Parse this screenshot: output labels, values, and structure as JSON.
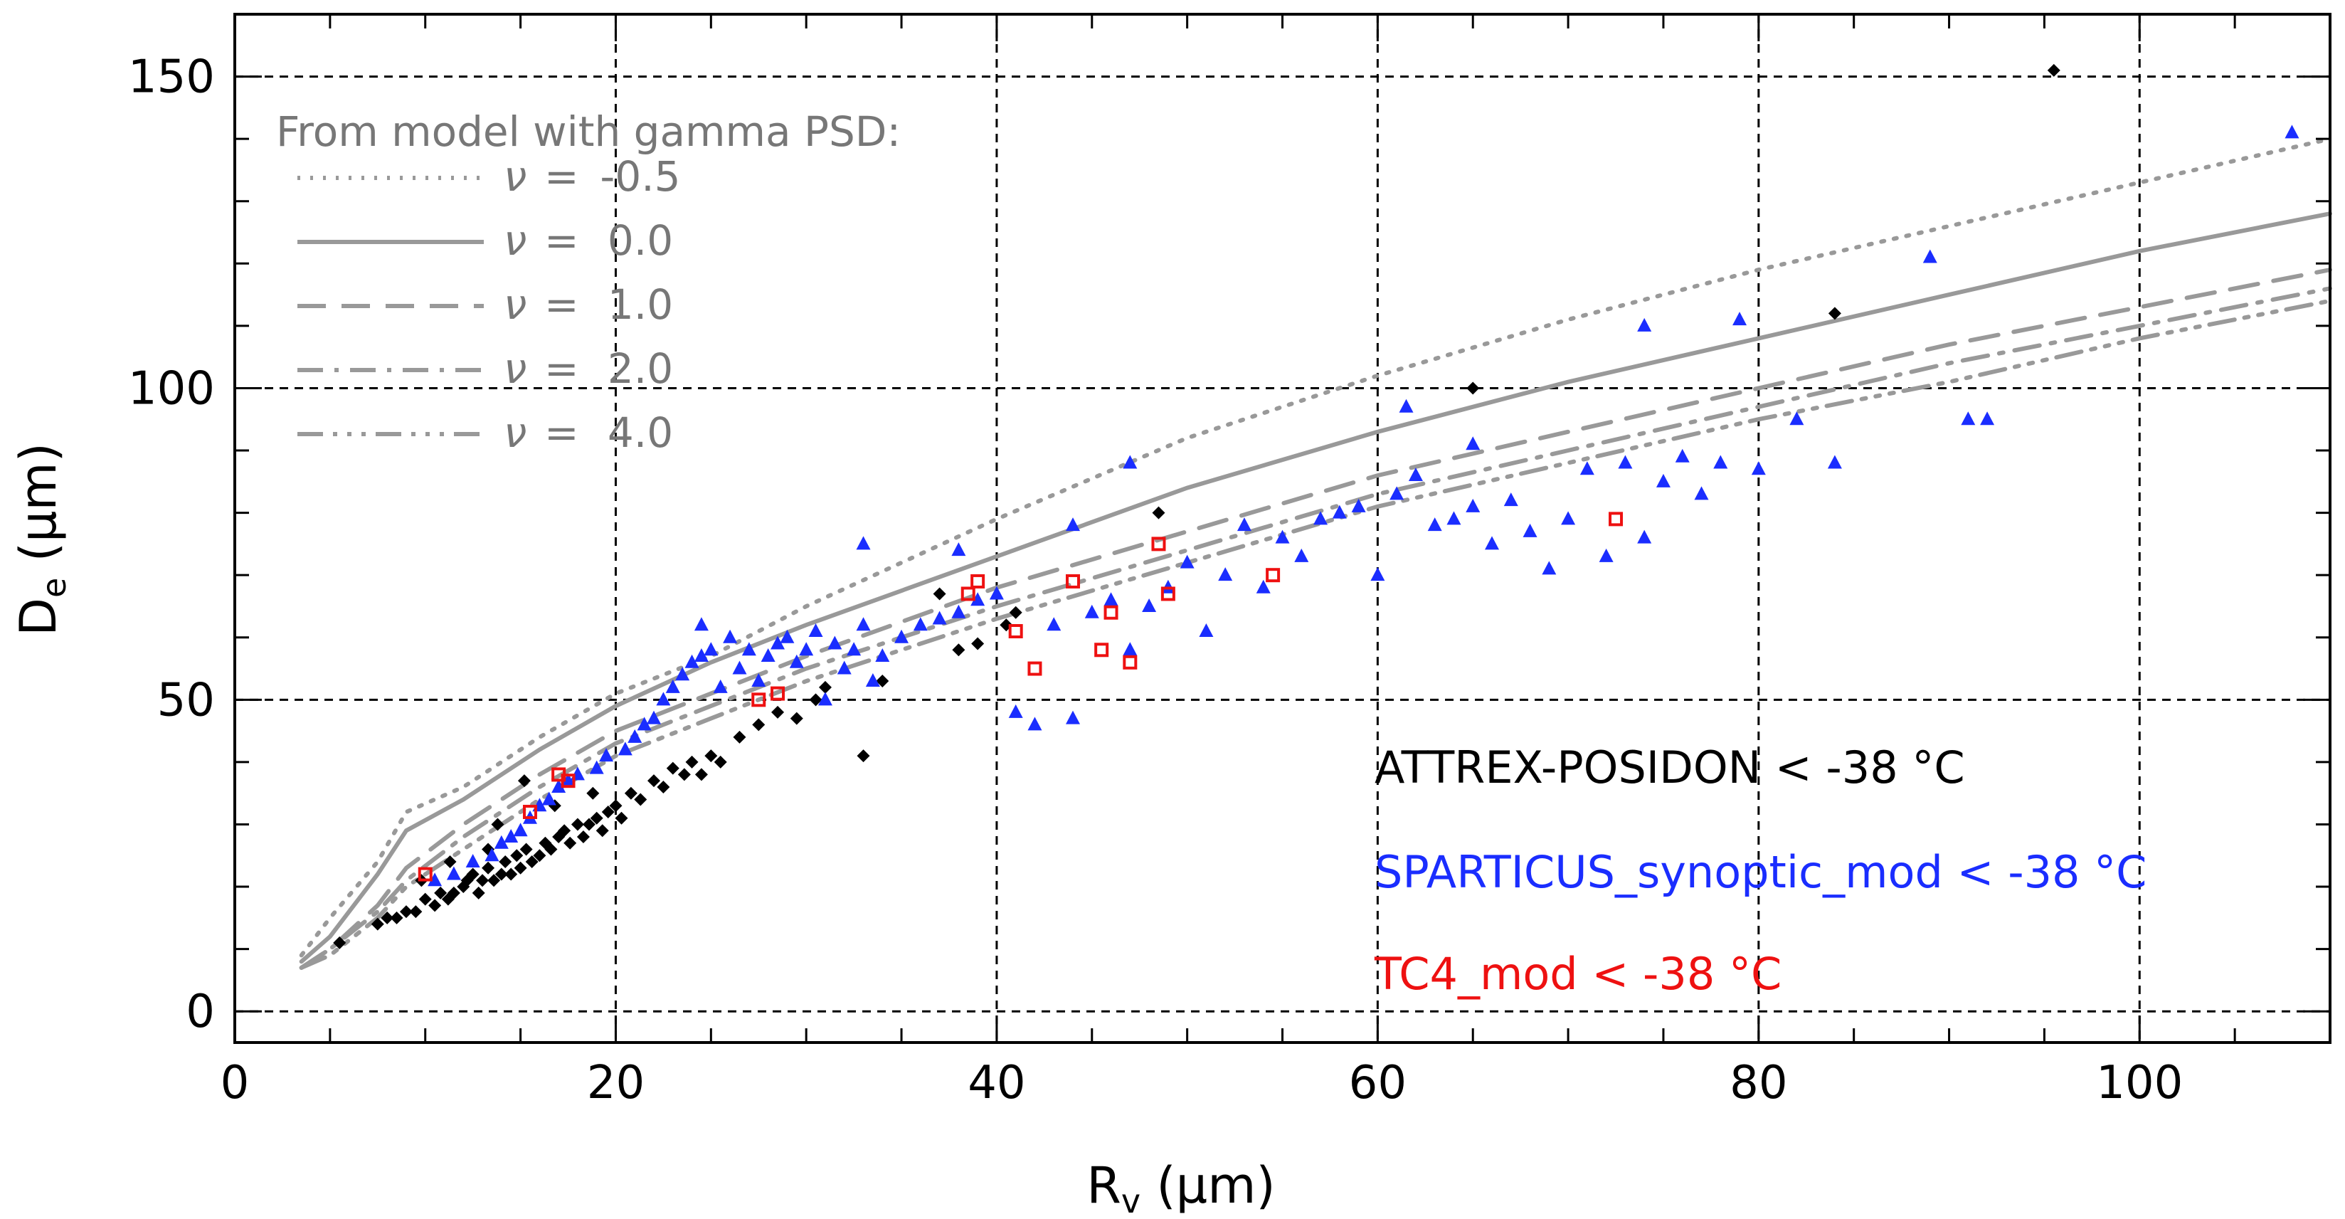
{
  "chart_data": {
    "type": "scatter",
    "xlabel": "R",
    "xlabel_sub": "v",
    "xlabel_unit": " (μm)",
    "ylabel": "D",
    "ylabel_sub": "e",
    "ylabel_unit": " (μm)",
    "xlim": [
      0,
      110
    ],
    "ylim": [
      -5,
      160
    ],
    "x_ticks": [
      0,
      20,
      40,
      60,
      80,
      100
    ],
    "y_ticks": [
      0,
      50,
      100,
      150
    ],
    "x_minor_step": 5,
    "y_minor_step": 10,
    "grid": "dashed at major ticks",
    "legend": {
      "title": "From model with gamma PSD:",
      "position": "top-left",
      "entries": [
        {
          "symbol": "ν",
          "eq": "=",
          "value": "-0.5",
          "dash": "dotted"
        },
        {
          "symbol": "ν",
          "eq": "=",
          "value": "0.0",
          "dash": "solid"
        },
        {
          "symbol": "ν",
          "eq": "=",
          "value": "1.0",
          "dash": "dashed"
        },
        {
          "symbol": "ν",
          "eq": "=",
          "value": "2.0",
          "dash": "dash-dot"
        },
        {
          "symbol": "ν",
          "eq": "=",
          "value": "4.0",
          "dash": "dash-dot-dot-dot"
        }
      ]
    },
    "model_color": "#999999",
    "model_curves": [
      {
        "nu": "-0.5",
        "x": [
          3.5,
          5,
          7.5,
          9,
          12,
          16,
          20,
          25,
          30,
          40,
          50,
          60,
          70,
          80,
          90,
          100,
          110
        ],
        "y": [
          9,
          15,
          24,
          32,
          36,
          44,
          51,
          57,
          65,
          79,
          92,
          102,
          111,
          119,
          126,
          133,
          140
        ]
      },
      {
        "nu": "0.0",
        "x": [
          3.5,
          5,
          7.5,
          9,
          12,
          16,
          20,
          25,
          30,
          40,
          50,
          60,
          70,
          80,
          90,
          100,
          110
        ],
        "y": [
          8,
          12,
          22,
          29,
          34,
          42,
          49,
          56,
          62,
          73,
          84,
          93,
          101,
          108,
          115,
          122,
          128
        ]
      },
      {
        "nu": "1.0",
        "x": [
          3.5,
          5,
          7.5,
          9,
          12,
          16,
          20,
          25,
          30,
          40,
          50,
          60,
          70,
          80,
          90,
          100,
          110
        ],
        "y": [
          7,
          10,
          17,
          23,
          30,
          38,
          45,
          51,
          57,
          68,
          77,
          86,
          93,
          100,
          107,
          113,
          119
        ]
      },
      {
        "nu": "2.0",
        "x": [
          3.5,
          5,
          7.5,
          9,
          12,
          16,
          20,
          25,
          30,
          40,
          50,
          60,
          70,
          80,
          90,
          100,
          110
        ],
        "y": [
          7,
          10,
          16,
          21,
          28,
          36,
          43,
          49,
          55,
          65,
          74,
          83,
          90,
          97,
          104,
          110,
          116
        ]
      },
      {
        "nu": "4.0",
        "x": [
          3.5,
          5,
          7.5,
          9,
          12,
          16,
          20,
          25,
          30,
          40,
          50,
          60,
          70,
          80,
          90,
          100,
          110
        ],
        "y": [
          7,
          9,
          15,
          20,
          26,
          34,
          41,
          47,
          53,
          63,
          72,
          81,
          88,
          95,
          101,
          108,
          114
        ]
      }
    ],
    "series": [
      {
        "name": "ATTREX-POSIDON < -38 °C",
        "color": "#000000",
        "marker": "diamond",
        "x": [
          5.5,
          7.5,
          8,
          8.5,
          9,
          9.5,
          10,
          10.5,
          10.8,
          11.2,
          11.5,
          12,
          12.2,
          12.5,
          12.8,
          13,
          13.3,
          13.6,
          14,
          14.2,
          14.5,
          14.8,
          15,
          15.3,
          15.6,
          16,
          16.3,
          16.6,
          17,
          17.3,
          17.6,
          18,
          18.3,
          18.6,
          19,
          19.3,
          19.6,
          20,
          20.3,
          20.8,
          21.3,
          22,
          22.5,
          23,
          23.6,
          24,
          24.5,
          25,
          25.5,
          26.5,
          27.5,
          28.5,
          29.5,
          30.5,
          31,
          33,
          34,
          37,
          38,
          39,
          40.5,
          41,
          48.5,
          65,
          84,
          95.5,
          9.8,
          11.3,
          13.8,
          16.8,
          18.8,
          15.2,
          13.3
        ],
        "y": [
          11,
          14,
          15,
          15,
          16,
          16,
          18,
          17,
          19,
          18,
          19,
          20,
          21,
          22,
          19,
          21,
          23,
          21,
          22,
          24,
          22,
          25,
          23,
          26,
          24,
          25,
          27,
          26,
          28,
          29,
          27,
          30,
          28,
          30,
          31,
          29,
          32,
          33,
          31,
          35,
          34,
          37,
          36,
          39,
          38,
          40,
          38,
          41,
          40,
          44,
          46,
          48,
          47,
          50,
          52,
          41,
          53,
          67,
          58,
          59,
          62,
          64,
          80,
          100,
          112,
          151,
          21,
          24,
          30,
          33,
          35,
          37,
          26
        ]
      },
      {
        "name": "SPARTICUS_synoptic_mod < -38 °C",
        "color": "#1a2dff",
        "marker": "triangle",
        "x": [
          10.5,
          11.5,
          12.5,
          13.5,
          14,
          14.5,
          15,
          15.5,
          16,
          16.5,
          17,
          17.5,
          18,
          19,
          19.5,
          20.5,
          21,
          21.5,
          22,
          22.5,
          23,
          23.5,
          24,
          24.5,
          25,
          25.5,
          26,
          26.5,
          27,
          27.5,
          28,
          28.5,
          29,
          29.5,
          30,
          30.5,
          31,
          31.5,
          32,
          32.5,
          33,
          33.5,
          34,
          35,
          36,
          37,
          38,
          39,
          40,
          41,
          42,
          43,
          44,
          45,
          46,
          47,
          48,
          49,
          50,
          51,
          52,
          53,
          54,
          55,
          56,
          57,
          58,
          59,
          60,
          61,
          62,
          63,
          64,
          65,
          66,
          67,
          68,
          69,
          70,
          71,
          72,
          73,
          74,
          75,
          76,
          77,
          78,
          79,
          80,
          82,
          84,
          89,
          91,
          92,
          108,
          24.5,
          33,
          38,
          44,
          47,
          61.5,
          74,
          65
        ],
        "y": [
          21,
          22,
          24,
          25,
          27,
          28,
          29,
          31,
          33,
          34,
          36,
          37,
          38,
          39,
          41,
          42,
          44,
          46,
          47,
          50,
          52,
          54,
          56,
          57,
          58,
          52,
          60,
          55,
          58,
          53,
          57,
          59,
          60,
          56,
          58,
          61,
          50,
          59,
          55,
          58,
          62,
          53,
          57,
          60,
          62,
          63,
          64,
          66,
          67,
          48,
          46,
          62,
          47,
          64,
          66,
          58,
          65,
          68,
          72,
          61,
          70,
          78,
          68,
          76,
          73,
          79,
          80,
          81,
          70,
          83,
          86,
          78,
          79,
          81,
          75,
          82,
          77,
          71,
          79,
          87,
          73,
          88,
          76,
          85,
          89,
          83,
          88,
          111,
          87,
          95,
          88,
          121,
          95,
          95,
          141,
          62,
          75,
          74,
          78,
          88,
          97,
          110,
          91
        ]
      },
      {
        "name": "TC4_mod < -38 °C",
        "color": "#ee1111",
        "marker": "square",
        "x": [
          10,
          15.5,
          17,
          17.5,
          27.5,
          28.5,
          38.5,
          39,
          41,
          42,
          44,
          45.5,
          46,
          47,
          48.5,
          49,
          54.5,
          72.5
        ],
        "y": [
          22,
          32,
          38,
          37,
          50,
          51,
          67,
          69,
          61,
          55,
          69,
          58,
          64,
          56,
          75,
          67,
          70,
          79
        ]
      }
    ]
  }
}
